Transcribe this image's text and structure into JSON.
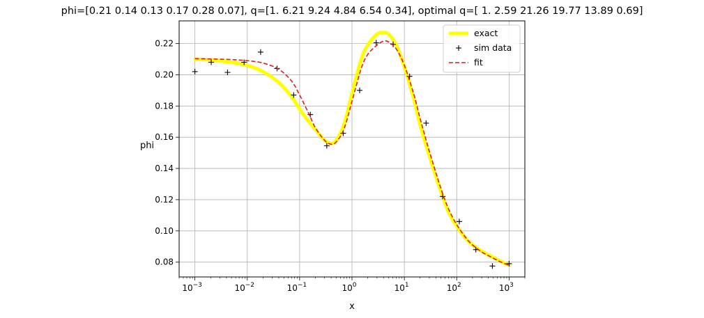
{
  "chart_data": {
    "type": "line",
    "title": "phi=[0.21 0.14 0.13 0.17 0.28 0.07], q=[1.   6.21 9.24 4.84 6.54 0.34], optimal q=[ 1.    2.59 21.26 19.77 13.89  0.69]",
    "xlabel": "x",
    "ylabel": "phi",
    "xscale": "log",
    "xlim": [
      0.0005,
      2000
    ],
    "ylim": [
      0.0705,
      0.2345
    ],
    "x_ticks": [
      {
        "value": 0.001,
        "base": "10",
        "exp": "−3"
      },
      {
        "value": 0.01,
        "base": "10",
        "exp": "−2"
      },
      {
        "value": 0.1,
        "base": "10",
        "exp": "−1"
      },
      {
        "value": 1,
        "base": "10",
        "exp": "0"
      },
      {
        "value": 10,
        "base": "10",
        "exp": "1"
      },
      {
        "value": 100,
        "base": "10",
        "exp": "2"
      },
      {
        "value": 1000,
        "base": "10",
        "exp": "3"
      }
    ],
    "y_ticks": [
      "0.08",
      "0.10",
      "0.12",
      "0.14",
      "0.16",
      "0.18",
      "0.20",
      "0.22"
    ],
    "grid": true,
    "legend_position": "top-right",
    "series": [
      {
        "name": "exact",
        "style": "line",
        "color": "#ffff00",
        "x": [
          0.001,
          0.002,
          0.005,
          0.01,
          0.02,
          0.04,
          0.07,
          0.1,
          0.15,
          0.2,
          0.3,
          0.4,
          0.5,
          0.7,
          1,
          1.5,
          2,
          3,
          4,
          5,
          7,
          10,
          15,
          20,
          30,
          50,
          70,
          100,
          150,
          200,
          300,
          500,
          700,
          1000
        ],
        "y": [
          0.21,
          0.2095,
          0.208,
          0.206,
          0.202,
          0.195,
          0.186,
          0.178,
          0.17,
          0.165,
          0.158,
          0.156,
          0.158,
          0.168,
          0.188,
          0.21,
          0.219,
          0.226,
          0.227,
          0.226,
          0.219,
          0.205,
          0.185,
          0.168,
          0.148,
          0.125,
          0.112,
          0.103,
          0.095,
          0.091,
          0.087,
          0.083,
          0.0805,
          0.078
        ]
      },
      {
        "name": "sim data",
        "style": "marker",
        "marker": "+",
        "color": "#000000",
        "x": [
          0.001,
          0.00205,
          0.0042,
          0.0087,
          0.018,
          0.037,
          0.077,
          0.16,
          0.33,
          0.68,
          1.4,
          2.9,
          6.1,
          12.6,
          26,
          54,
          112,
          232,
          480,
          1000
        ],
        "y": [
          0.202,
          0.208,
          0.2015,
          0.208,
          0.2145,
          0.204,
          0.187,
          0.1745,
          0.1545,
          0.1625,
          0.19,
          0.2205,
          0.2195,
          0.199,
          0.169,
          0.122,
          0.106,
          0.088,
          0.0775,
          0.079
        ]
      },
      {
        "name": "fit",
        "style": "dashed",
        "color": "#e41a1c",
        "x": [
          0.001,
          0.002,
          0.005,
          0.01,
          0.02,
          0.04,
          0.07,
          0.1,
          0.15,
          0.2,
          0.3,
          0.4,
          0.5,
          0.7,
          1,
          1.5,
          2,
          3,
          4,
          5,
          7,
          10,
          15,
          20,
          30,
          50,
          70,
          100,
          150,
          200,
          300,
          500,
          700,
          1000
        ],
        "y": [
          0.2103,
          0.2101,
          0.2097,
          0.209,
          0.2075,
          0.2035,
          0.196,
          0.187,
          0.175,
          0.166,
          0.158,
          0.1555,
          0.157,
          0.165,
          0.183,
          0.204,
          0.213,
          0.219,
          0.2215,
          0.221,
          0.2165,
          0.206,
          0.188,
          0.172,
          0.151,
          0.127,
          0.114,
          0.104,
          0.0955,
          0.091,
          0.0865,
          0.0825,
          0.08,
          0.078
        ]
      }
    ]
  }
}
